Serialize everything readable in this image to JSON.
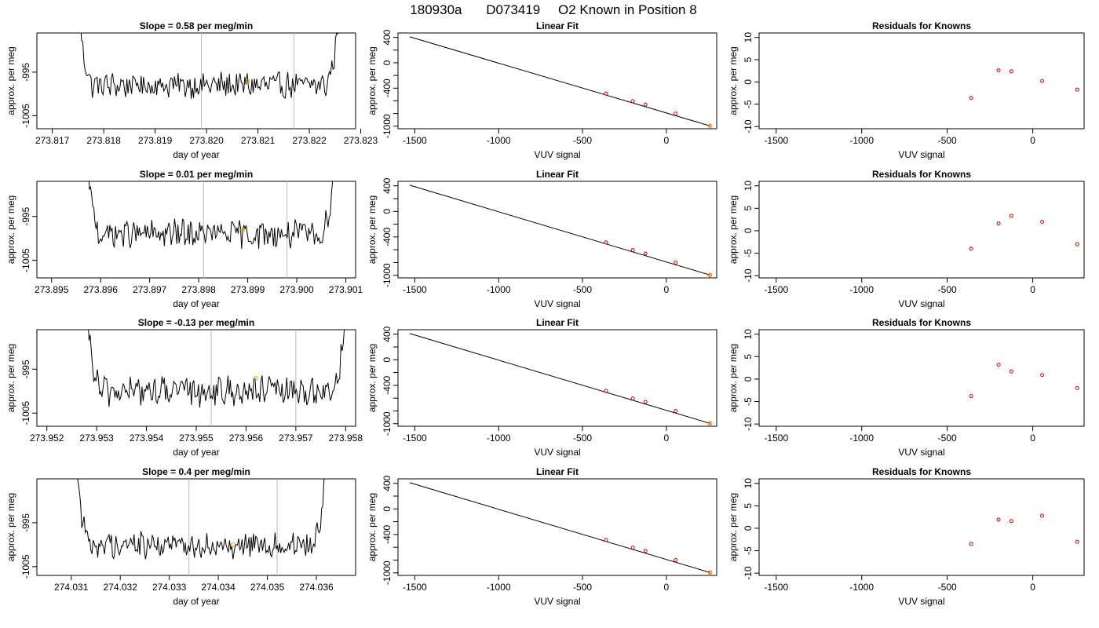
{
  "page": {
    "title_parts": [
      "180930a",
      "D073419",
      "O2 Known in Position  8"
    ]
  },
  "colors": {
    "trace": "#000000",
    "known_point": "#cc0000",
    "highlight_point": "#ff9900",
    "marker_line": "#bbbbbb",
    "axis": "#000000",
    "background": "#ffffff"
  },
  "chart_data": [
    {
      "type": "line",
      "row": 0,
      "panel": "time",
      "title": "Slope =  0.58  per meg/min",
      "xlabel": "day of year",
      "ylabel": "approx. per meg",
      "xlim": [
        273.8167,
        273.8229
      ],
      "ylim": [
        -1008,
        -986
      ],
      "xticks": [
        273.817,
        273.818,
        273.819,
        273.82,
        273.821,
        273.822,
        273.823
      ],
      "xtick_labels": [
        "273.817",
        "273.818",
        "273.819",
        "273.820",
        "273.821",
        "273.822",
        "273.823"
      ],
      "yticks": [
        -995,
        -1005
      ],
      "ytick_labels": [
        "-995",
        "-1005"
      ],
      "trace_x_range": [
        273.8175,
        273.8226
      ],
      "trace_baseline": -998,
      "trace_amplitude": 2.6,
      "trace_edge_peak": 18,
      "vlines": [
        273.8199,
        273.8217
      ],
      "highlight": {
        "x": 273.8208,
        "y": -997
      }
    },
    {
      "type": "scatter",
      "row": 0,
      "panel": "fit",
      "title": "Linear Fit",
      "xlabel": "VUV signal",
      "ylabel": "approx. per meg",
      "xlim": [
        -1600,
        300
      ],
      "ylim": [
        -1040,
        470
      ],
      "xticks": [
        -1500,
        -1000,
        -500,
        0
      ],
      "xtick_labels": [
        "-1500",
        "-1000",
        "-500",
        "0"
      ],
      "yticks": [
        400,
        0,
        -400,
        -1000
      ],
      "ytick_labels": [
        "400",
        "0",
        "-400",
        "-1000"
      ],
      "minor_yticks": [
        200,
        -200,
        -600,
        -800
      ],
      "fit_line": {
        "x": [
          -1530,
          260
        ],
        "y": [
          410,
          -995
        ]
      },
      "points": {
        "x": [
          -360,
          -200,
          -125,
          55,
          260
        ],
        "y": [
          -484,
          -606,
          -660,
          -801,
          -995
        ]
      },
      "highlight": {
        "x": 260,
        "y": -995
      }
    },
    {
      "type": "scatter",
      "row": 0,
      "panel": "resid",
      "title": "Residuals for Knowns",
      "xlabel": "VUV signal",
      "ylabel": "approx. per meg",
      "xlim": [
        -1600,
        300
      ],
      "ylim": [
        -10.5,
        11
      ],
      "xticks": [
        -1500,
        -1000,
        -500,
        0
      ],
      "xtick_labels": [
        "-1500",
        "-1000",
        "-500",
        "0"
      ],
      "yticks": [
        10,
        5,
        0,
        -5,
        -10
      ],
      "ytick_labels": [
        "10",
        "5",
        "0",
        "-5",
        "-10"
      ],
      "points": {
        "x": [
          -360,
          -200,
          -125,
          55,
          260
        ],
        "y": [
          -3.6,
          2.6,
          2.4,
          0.2,
          -1.7
        ]
      }
    },
    {
      "type": "line",
      "row": 1,
      "panel": "time",
      "title": "Slope =  0.01  per meg/min",
      "xlabel": "day of year",
      "ylabel": "approx. per meg",
      "xlim": [
        273.8947,
        273.9012
      ],
      "ylim": [
        -1009,
        -987
      ],
      "xticks": [
        273.895,
        273.896,
        273.897,
        273.898,
        273.899,
        273.9,
        273.901
      ],
      "xtick_labels": [
        "273.895",
        "273.896",
        "273.897",
        "273.898",
        "273.899",
        "273.900",
        "273.901"
      ],
      "yticks": [
        -995,
        -1005
      ],
      "ytick_labels": [
        "-995",
        "-1005"
      ],
      "trace_x_range": [
        273.8957,
        273.9008
      ],
      "trace_baseline": -999,
      "trace_amplitude": 2.8,
      "trace_edge_peak": 20,
      "vlines": [
        273.8981,
        273.8998
      ],
      "highlight": {
        "x": 273.8989,
        "y": -998
      }
    },
    {
      "type": "scatter",
      "row": 1,
      "panel": "fit",
      "title": "Linear Fit",
      "xlabel": "VUV signal",
      "ylabel": "approx. per meg",
      "xlim": [
        -1600,
        300
      ],
      "ylim": [
        -1040,
        470
      ],
      "xticks": [
        -1500,
        -1000,
        -500,
        0
      ],
      "xtick_labels": [
        "-1500",
        "-1000",
        "-500",
        "0"
      ],
      "yticks": [
        400,
        0,
        -400,
        -1000
      ],
      "ytick_labels": [
        "400",
        "0",
        "-400",
        "-1000"
      ],
      "minor_yticks": [
        200,
        -200,
        -600,
        -800
      ],
      "fit_line": {
        "x": [
          -1530,
          260
        ],
        "y": [
          410,
          -995
        ]
      },
      "points": {
        "x": [
          -360,
          -200,
          -125,
          55,
          260
        ],
        "y": [
          -484,
          -606,
          -660,
          -801,
          -995
        ]
      },
      "highlight": {
        "x": 260,
        "y": -995
      }
    },
    {
      "type": "scatter",
      "row": 1,
      "panel": "resid",
      "title": "Residuals for Knowns",
      "xlabel": "VUV signal",
      "ylabel": "approx. per meg",
      "xlim": [
        -1600,
        300
      ],
      "ylim": [
        -10.5,
        11
      ],
      "xticks": [
        -1500,
        -1000,
        -500,
        0
      ],
      "xtick_labels": [
        "-1500",
        "-1000",
        "-500",
        "0"
      ],
      "yticks": [
        10,
        5,
        0,
        -5,
        -10
      ],
      "ytick_labels": [
        "10",
        "5",
        "0",
        "-5",
        "-10"
      ],
      "points": {
        "x": [
          -360,
          -200,
          -125,
          55,
          260
        ],
        "y": [
          -4.0,
          1.6,
          3.3,
          2.0,
          -3.0
        ]
      }
    },
    {
      "type": "line",
      "row": 2,
      "panel": "time",
      "title": "Slope =  -0.13  per meg/min",
      "xlabel": "day of year",
      "ylabel": "approx. per meg",
      "xlim": [
        273.9518,
        273.9582
      ],
      "ylim": [
        -1008,
        -986
      ],
      "xticks": [
        273.952,
        273.953,
        273.954,
        273.955,
        273.956,
        273.957,
        273.958
      ],
      "xtick_labels": [
        "273.952",
        "273.953",
        "273.954",
        "273.955",
        "273.956",
        "273.957",
        "273.958"
      ],
      "yticks": [
        -995,
        -1005
      ],
      "ytick_labels": [
        "-995",
        "-1005"
      ],
      "trace_x_range": [
        273.9528,
        273.958
      ],
      "trace_baseline": -1000,
      "trace_amplitude": 3.0,
      "trace_edge_peak": 17,
      "vlines": [
        273.9553,
        273.957
      ],
      "highlight": {
        "x": 273.9562,
        "y": -997
      }
    },
    {
      "type": "scatter",
      "row": 2,
      "panel": "fit",
      "title": "Linear Fit",
      "xlabel": "VUV signal",
      "ylabel": "approx. per meg",
      "xlim": [
        -1600,
        300
      ],
      "ylim": [
        -1040,
        470
      ],
      "xticks": [
        -1500,
        -1000,
        -500,
        0
      ],
      "xtick_labels": [
        "-1500",
        "-1000",
        "-500",
        "0"
      ],
      "yticks": [
        400,
        0,
        -400,
        -1000
      ],
      "ytick_labels": [
        "400",
        "0",
        "-400",
        "-1000"
      ],
      "minor_yticks": [
        200,
        -200,
        -600,
        -800
      ],
      "fit_line": {
        "x": [
          -1530,
          260
        ],
        "y": [
          410,
          -995
        ]
      },
      "points": {
        "x": [
          -360,
          -200,
          -125,
          55,
          260
        ],
        "y": [
          -484,
          -606,
          -660,
          -801,
          -995
        ]
      },
      "highlight": {
        "x": 260,
        "y": -995
      }
    },
    {
      "type": "scatter",
      "row": 2,
      "panel": "resid",
      "title": "Residuals for Knowns",
      "xlabel": "VUV signal",
      "ylabel": "approx. per meg",
      "xlim": [
        -1600,
        300
      ],
      "ylim": [
        -10.5,
        11
      ],
      "xticks": [
        -1500,
        -1000,
        -500,
        0
      ],
      "xtick_labels": [
        "-1500",
        "-1000",
        "-500",
        "0"
      ],
      "yticks": [
        10,
        5,
        0,
        -5,
        -10
      ],
      "ytick_labels": [
        "10",
        "5",
        "0",
        "-5",
        "-10"
      ],
      "points": {
        "x": [
          -360,
          -200,
          -125,
          55,
          260
        ],
        "y": [
          -3.8,
          3.2,
          1.7,
          0.9,
          -2.0
        ]
      }
    },
    {
      "type": "line",
      "row": 3,
      "panel": "time",
      "title": "Slope =  0.4  per meg/min",
      "xlabel": "day of year",
      "ylabel": "approx. per meg",
      "xlim": [
        274.0303,
        274.0368
      ],
      "ylim": [
        -1007,
        -985
      ],
      "xticks": [
        274.031,
        274.032,
        274.033,
        274.034,
        274.035,
        274.036
      ],
      "xtick_labels": [
        "274.031",
        "274.032",
        "274.033",
        "274.034",
        "274.035",
        "274.036"
      ],
      "yticks": [
        -995,
        -1005
      ],
      "ytick_labels": [
        "-995",
        "-1005"
      ],
      "trace_x_range": [
        274.0311,
        274.0362
      ],
      "trace_baseline": -1000,
      "trace_amplitude": 2.6,
      "trace_edge_peak": 18,
      "vlines": [
        274.0334,
        274.0352
      ],
      "highlight": {
        "x": 274.0343,
        "y": -1000
      }
    },
    {
      "type": "scatter",
      "row": 3,
      "panel": "fit",
      "title": "Linear Fit",
      "xlabel": "VUV signal",
      "ylabel": "approx. per meg",
      "xlim": [
        -1600,
        300
      ],
      "ylim": [
        -1040,
        470
      ],
      "xticks": [
        -1500,
        -1000,
        -500,
        0
      ],
      "xtick_labels": [
        "-1500",
        "-1000",
        "-500",
        "0"
      ],
      "yticks": [
        400,
        0,
        -400,
        -1000
      ],
      "ytick_labels": [
        "400",
        "0",
        "-400",
        "-1000"
      ],
      "minor_yticks": [
        200,
        -200,
        -600,
        -800
      ],
      "fit_line": {
        "x": [
          -1530,
          260
        ],
        "y": [
          410,
          -995
        ]
      },
      "points": {
        "x": [
          -360,
          -200,
          -125,
          55,
          260
        ],
        "y": [
          -484,
          -606,
          -660,
          -801,
          -995
        ]
      },
      "highlight": {
        "x": 260,
        "y": -995
      }
    },
    {
      "type": "scatter",
      "row": 3,
      "panel": "resid",
      "title": "Residuals for Knowns",
      "xlabel": "VUV signal",
      "ylabel": "approx. per meg",
      "xlim": [
        -1600,
        300
      ],
      "ylim": [
        -10.5,
        11
      ],
      "xticks": [
        -1500,
        -1000,
        -500,
        0
      ],
      "xtick_labels": [
        "-1500",
        "-1000",
        "-500",
        "0"
      ],
      "yticks": [
        10,
        5,
        0,
        -5,
        -10
      ],
      "ytick_labels": [
        "10",
        "5",
        "0",
        "-5",
        "-10"
      ],
      "points": {
        "x": [
          -360,
          -200,
          -125,
          55,
          260
        ],
        "y": [
          -3.5,
          1.9,
          1.6,
          2.8,
          -3.0
        ]
      }
    }
  ]
}
